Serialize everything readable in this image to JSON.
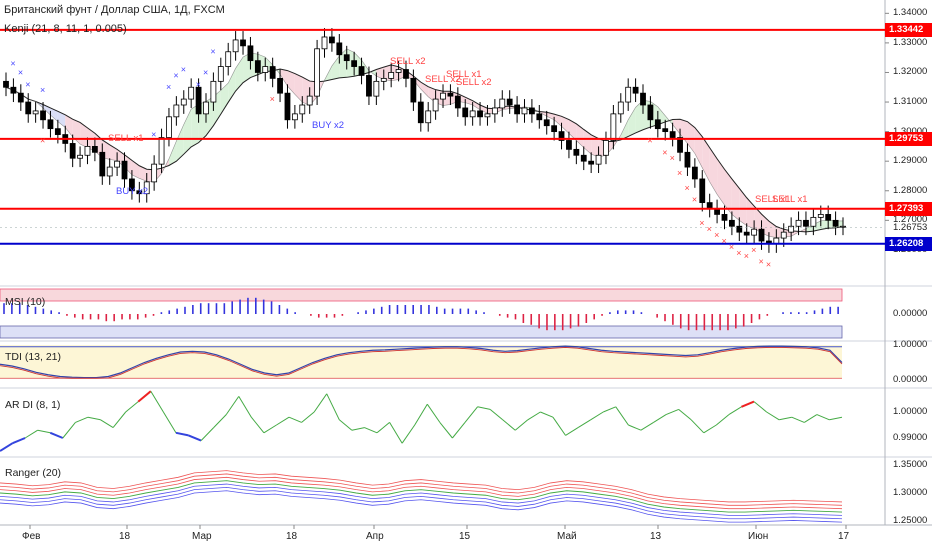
{
  "header": {
    "title": "Британский фунт / Доллар США, 1Д, FXCM",
    "indicator": "Kenji (21, 8, 11, 1, 0.005)"
  },
  "colors": {
    "bull_candle": "#ffffff",
    "bear_candle": "#000000",
    "resistance_line": "#ff0000",
    "support_line": "#0000cc",
    "cloud_bull": "#d4f0d4",
    "cloud_bear": "#f6d0d8",
    "cloud_blue": "#d4d8f4",
    "signal_red": "#ff4444",
    "signal_blue": "#4444ff"
  },
  "chart_data": [
    {
      "pane": "price",
      "type": "candlestick",
      "y_ticks": [
        "1.34000",
        "1.33000",
        "1.32000",
        "1.31000",
        "1.30000",
        "1.29000",
        "1.28000",
        "1.27000",
        "1.26000"
      ],
      "ylim": [
        1.2505,
        1.3418
      ],
      "horizontal_levels": [
        {
          "label": "1.33442",
          "value": 1.33442,
          "color": "#ff0000"
        },
        {
          "label": "1.29753",
          "value": 1.29753,
          "color": "#ff0000"
        },
        {
          "label": "1.27393",
          "value": 1.27393,
          "color": "#ff0000"
        },
        {
          "label": "1.26208",
          "value": 1.26208,
          "color": "#0000cc"
        }
      ],
      "last_price_label": "1.26753",
      "last_price": 1.26753,
      "closes": [
        1.315,
        1.313,
        1.31,
        1.306,
        1.307,
        1.304,
        1.301,
        1.299,
        1.296,
        1.291,
        1.292,
        1.295,
        1.293,
        1.285,
        1.288,
        1.29,
        1.284,
        1.28,
        1.279,
        1.283,
        1.289,
        1.298,
        1.305,
        1.309,
        1.311,
        1.315,
        1.306,
        1.31,
        1.317,
        1.322,
        1.327,
        1.331,
        1.329,
        1.324,
        1.32,
        1.322,
        1.318,
        1.313,
        1.304,
        1.306,
        1.309,
        1.312,
        1.328,
        1.332,
        1.33,
        1.326,
        1.324,
        1.322,
        1.319,
        1.312,
        1.317,
        1.318,
        1.32,
        1.321,
        1.318,
        1.31,
        1.303,
        1.307,
        1.311,
        1.313,
        1.312,
        1.308,
        1.305,
        1.307,
        1.305,
        1.306,
        1.308,
        1.311,
        1.309,
        1.306,
        1.308,
        1.306,
        1.304,
        1.302,
        1.3,
        1.297,
        1.294,
        1.292,
        1.29,
        1.289,
        1.292,
        1.297,
        1.306,
        1.31,
        1.315,
        1.313,
        1.309,
        1.304,
        1.301,
        1.3,
        1.298,
        1.293,
        1.288,
        1.284,
        1.276,
        1.274,
        1.272,
        1.27,
        1.268,
        1.266,
        1.265,
        1.267,
        1.263,
        1.262,
        1.264,
        1.266,
        1.268,
        1.27,
        1.268,
        1.271,
        1.272,
        1.27,
        1.268,
        1.268
      ],
      "signals": [
        {
          "text": "SELL x2",
          "value": 1.3235
        },
        {
          "text": "SELL x2",
          "value": 1.3175
        },
        {
          "text": "SELL x1",
          "value": 1.319
        },
        {
          "text": "SELL x2",
          "value": 1.3165
        },
        {
          "text": "SELL x1",
          "value": 1.2975
        },
        {
          "text": "BUY x2",
          "value": 1.302
        },
        {
          "text": "BUY x2",
          "value": 1.2795
        },
        {
          "text": "SELL x1",
          "value": 1.2768
        },
        {
          "text": "SELL x1",
          "value": 1.2768
        }
      ]
    },
    {
      "pane": "msi",
      "name": "MSI (10)",
      "type": "bar",
      "y_ticks": [
        "0.00000"
      ],
      "values": [
        0.6,
        0.6,
        0.6,
        0.5,
        0.4,
        0.3,
        0.2,
        0.1,
        -0.1,
        -0.2,
        -0.3,
        -0.3,
        -0.3,
        -0.4,
        -0.4,
        -0.3,
        -0.3,
        -0.3,
        -0.2,
        -0.1,
        0.1,
        0.2,
        0.3,
        0.4,
        0.5,
        0.6,
        0.6,
        0.6,
        0.6,
        0.7,
        0.8,
        0.9,
        0.9,
        0.8,
        0.7,
        0.5,
        0.3,
        0.1,
        0,
        -0.1,
        -0.2,
        -0.2,
        -0.2,
        -0.1,
        0,
        0.1,
        0.2,
        0.3,
        0.4,
        0.5,
        0.5,
        0.5,
        0.5,
        0.5,
        0.5,
        0.4,
        0.3,
        0.3,
        0.3,
        0.3,
        0.2,
        0.1,
        0,
        -0.1,
        -0.2,
        -0.3,
        -0.5,
        -0.6,
        -0.8,
        -0.9,
        -0.9,
        -0.9,
        -0.8,
        -0.7,
        -0.5,
        -0.3,
        -0.1,
        0.1,
        0.2,
        0.2,
        0.2,
        0.1,
        0,
        -0.2,
        -0.4,
        -0.6,
        -0.8,
        -0.9,
        -0.9,
        -0.9,
        -0.9,
        -0.9,
        -0.9,
        -0.8,
        -0.7,
        -0.5,
        -0.3,
        -0.1,
        0,
        0.1,
        0.1,
        0.1,
        0.1,
        0.2,
        0.3,
        0.4,
        0.4
      ]
    },
    {
      "pane": "tdi",
      "name": "TDI (13, 21)",
      "type": "line",
      "y_ticks": [
        "1.00000",
        "0.00000"
      ],
      "values": [
        0.45,
        0.4,
        0.32,
        0.22,
        0.15,
        0.1,
        0.08,
        0.07,
        0.07,
        0.1,
        0.2,
        0.35,
        0.5,
        0.62,
        0.72,
        0.8,
        0.82,
        0.8,
        0.72,
        0.6,
        0.45,
        0.3,
        0.2,
        0.15,
        0.2,
        0.35,
        0.5,
        0.62,
        0.72,
        0.78,
        0.82,
        0.85,
        0.86,
        0.88,
        0.9,
        0.92,
        0.94,
        0.95,
        0.95,
        0.93,
        0.9,
        0.85,
        0.82,
        0.84,
        0.88,
        0.92,
        0.95,
        0.97,
        0.95,
        0.9,
        0.85,
        0.82,
        0.8,
        0.78,
        0.76,
        0.74,
        0.72,
        0.7,
        0.72,
        0.78,
        0.85,
        0.9,
        0.94,
        0.96,
        0.97,
        0.97,
        0.96,
        0.95,
        0.92,
        0.85,
        0.5
      ]
    },
    {
      "pane": "ardi",
      "name": "AR DI (8, 1)",
      "type": "line",
      "y_ticks": [
        "1.00000",
        "0.99000"
      ],
      "values": [
        0.985,
        0.988,
        0.99,
        0.993,
        0.992,
        0.99,
        0.996,
        0.998,
        0.997,
        0.994,
        1.0,
        1.004,
        1.008,
        1.0,
        0.992,
        0.991,
        0.989,
        0.994,
        0.999,
        1.006,
        0.998,
        0.992,
        0.995,
        0.998,
        0.996,
        1.0,
        1.007,
        0.997,
        0.993,
        0.994,
        0.992,
        0.996,
        0.988,
        0.995,
        1.003,
        0.996,
        0.99,
        0.996,
        1.002,
        1.001,
        0.997,
        0.993,
        0.997,
        1.0,
        0.998,
        0.991,
        0.994,
        0.997,
        1.0,
        1.002,
        0.995,
        0.993,
        0.996,
        0.999,
        1.001,
        0.997,
        0.992,
        0.995,
        0.999,
        1.002,
        1.004,
        1.0,
        0.997,
        0.998,
        0.996,
        0.999,
        0.997,
        0.998
      ]
    },
    {
      "pane": "ranger",
      "name": "Ranger (20)",
      "type": "line",
      "y_ticks": [
        "1.35000",
        "1.30000",
        "1.25000"
      ],
      "center": [
        1.3,
        1.298,
        1.295,
        1.297,
        1.302,
        1.3,
        1.292,
        1.29,
        1.294,
        1.3,
        1.305,
        1.31,
        1.318,
        1.32,
        1.322,
        1.318,
        1.315,
        1.316,
        1.312,
        1.31,
        1.308,
        1.305,
        1.3,
        1.296,
        1.298,
        1.304,
        1.306,
        1.303,
        1.3,
        1.298,
        1.296,
        1.29,
        1.288,
        1.292,
        1.3,
        1.304,
        1.302,
        1.298,
        1.294,
        1.288,
        1.28,
        1.275,
        1.272,
        1.27,
        1.268,
        1.266,
        1.266,
        1.267,
        1.268,
        1.269,
        1.268,
        1.267,
        1.266
      ]
    }
  ],
  "x_axis": {
    "ticks": [
      "Фев",
      "18",
      "Мар",
      "18",
      "Апр",
      "15",
      "Май",
      "13",
      "Июн",
      "17"
    ]
  }
}
